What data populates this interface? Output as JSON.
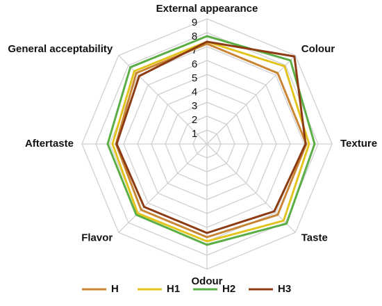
{
  "chart_data": {
    "type": "radar",
    "categories": [
      "External appearance",
      "Colour",
      "Texture",
      "Taste",
      "Odour",
      "Flavor",
      "Aftertaste",
      "General acceptability"
    ],
    "ylim": [
      0,
      9
    ],
    "yticks": [
      1,
      2,
      3,
      4,
      5,
      6,
      7,
      8,
      9
    ],
    "grid": true,
    "legend": "bottom",
    "series": [
      {
        "name": "H",
        "color": "#c98533",
        "values": [
          7.2,
          7.2,
          7.15,
          7.2,
          6.7,
          6.7,
          6.55,
          7.2
        ]
      },
      {
        "name": "H1",
        "color": "#e3c41e",
        "values": [
          7.35,
          7.9,
          7.35,
          7.8,
          7.0,
          7.05,
          6.8,
          7.4
        ]
      },
      {
        "name": "H2",
        "color": "#5aae45",
        "values": [
          7.75,
          8.5,
          7.75,
          8.1,
          7.25,
          7.2,
          7.15,
          7.8
        ]
      },
      {
        "name": "H3",
        "color": "#8c3b12",
        "values": [
          7.35,
          8.9,
          7.1,
          6.85,
          6.4,
          6.4,
          6.5,
          6.9
        ]
      }
    ]
  }
}
